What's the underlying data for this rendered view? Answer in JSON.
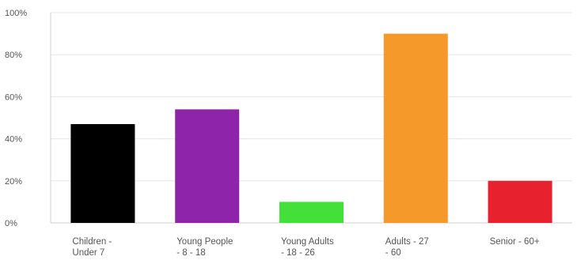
{
  "chart_data": {
    "type": "bar",
    "title": "",
    "xlabel": "",
    "ylabel": "",
    "ylim": [
      0,
      100
    ],
    "yticks": [
      "0%",
      "20%",
      "40%",
      "60%",
      "80%",
      "100%"
    ],
    "grid": true,
    "legend": "none",
    "categories": [
      [
        "Children -",
        "Under 7"
      ],
      [
        "Young People",
        "- 8 - 18"
      ],
      [
        "Young Adults",
        "- 18 - 26"
      ],
      [
        "Adults - 27",
        "- 60"
      ],
      [
        "Senior - 60+"
      ]
    ],
    "values": [
      47,
      54,
      10,
      90,
      20
    ],
    "colors": [
      "#000000",
      "#8e24aa",
      "#44e03a",
      "#f59a2a",
      "#e8212e"
    ]
  }
}
